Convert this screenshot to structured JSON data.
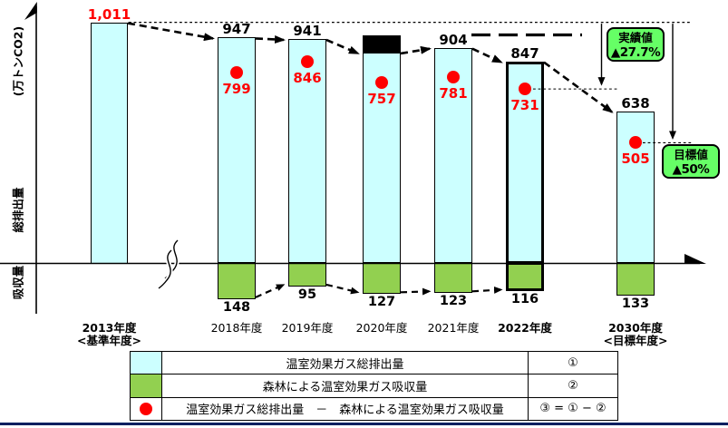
{
  "chart_data": {
    "type": "bar",
    "yaxis_unit_label": "(万トンCO2)",
    "yaxis_zone_label_above": "総排出量",
    "yaxis_zone_label_below": "吸収量",
    "years": [
      {
        "label": "2013年度",
        "sublabel": "<基準年度>",
        "bold": true,
        "highlighted": false,
        "total": 1011,
        "total_label": "1,011",
        "total_label_color": "#FF0000",
        "total_redacted": false,
        "absorption": null,
        "net": null
      },
      {
        "label": "2018年度",
        "sublabel": "",
        "bold": false,
        "highlighted": false,
        "total": 947,
        "total_label": "947",
        "total_label_color": "#000000",
        "total_redacted": false,
        "absorption": 148,
        "net": 799
      },
      {
        "label": "2019年度",
        "sublabel": "",
        "bold": false,
        "highlighted": false,
        "total": 941,
        "total_label": "941",
        "total_label_color": "#000000",
        "total_redacted": false,
        "absorption": 95,
        "net": 846
      },
      {
        "label": "2020年度",
        "sublabel": "",
        "bold": false,
        "highlighted": false,
        "total": null,
        "total_label": "",
        "total_label_color": "#000000",
        "total_redacted": true,
        "absorption": 127,
        "net": 757
      },
      {
        "label": "2021年度",
        "sublabel": "",
        "bold": false,
        "highlighted": false,
        "total": 904,
        "total_label": "904",
        "total_label_color": "#000000",
        "total_redacted": false,
        "absorption": 123,
        "net": 781
      },
      {
        "label": "2022年度",
        "sublabel": "",
        "bold": true,
        "highlighted": true,
        "total": 847,
        "total_label": "847",
        "total_label_color": "#000000",
        "total_redacted": false,
        "absorption": 116,
        "net": 731
      },
      {
        "label": "2030年度",
        "sublabel": "<目標年度>",
        "bold": true,
        "highlighted": false,
        "total": 638,
        "total_label": "638",
        "total_label_color": "#000000",
        "total_redacted": false,
        "absorption": 133,
        "net": 505
      }
    ],
    "annotations": {
      "actual": {
        "title": "実績値",
        "value": "▲27.7%"
      },
      "target": {
        "title": "目標値",
        "value": "▲50%"
      }
    },
    "colors": {
      "total_fill": "#CCFFFF",
      "absorption_fill": "#92D050",
      "net_dot": "#FF0000",
      "net_text": "#FF0000",
      "annotation_fill": "#66FF66",
      "bottom_rule": "#002060"
    }
  },
  "legend": {
    "rows": [
      {
        "text": "温室効果ガス総排出量",
        "symbol": "①"
      },
      {
        "text": "森林による温室効果ガス吸収量",
        "symbol": "②"
      },
      {
        "text": "温室効果ガス総排出量　－　森林による温室効果ガス吸収量",
        "symbol": "③ = ① − ②"
      }
    ]
  }
}
